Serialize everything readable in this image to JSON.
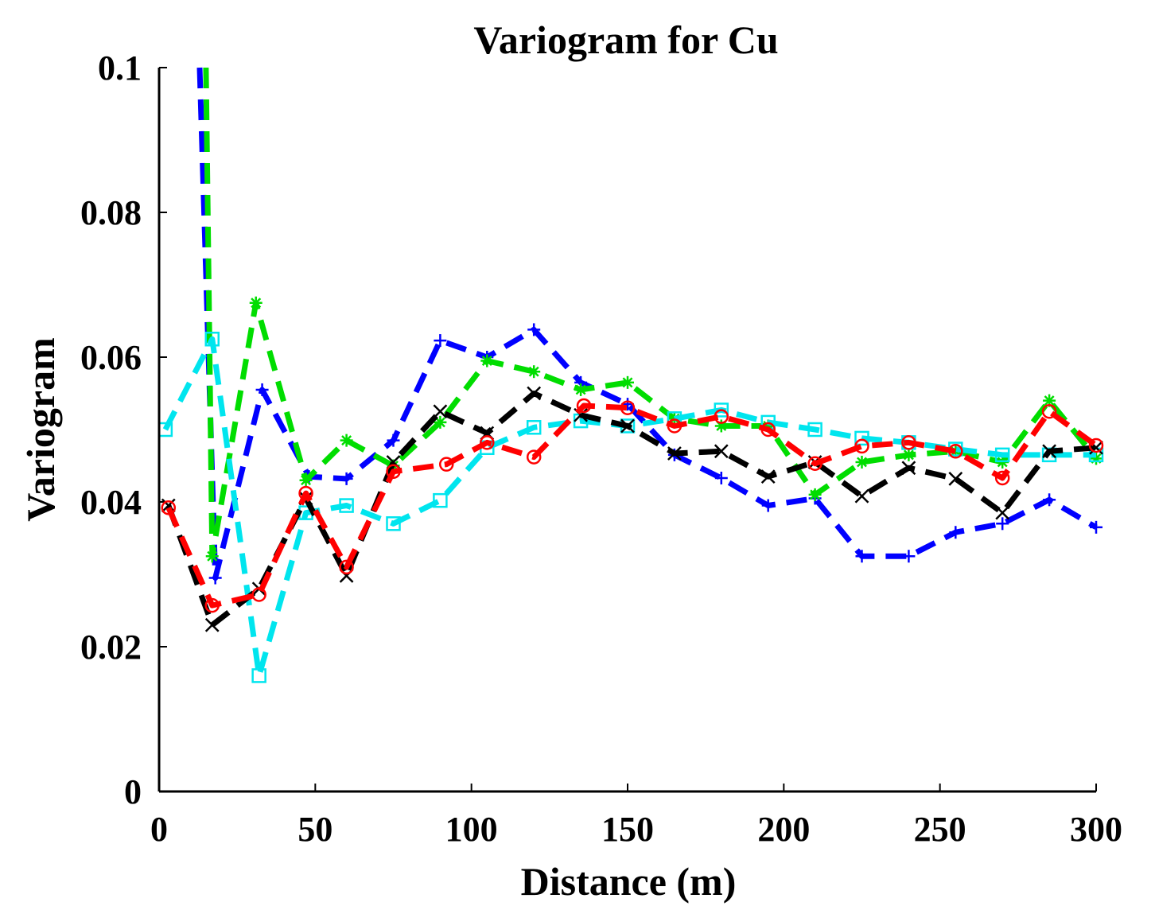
{
  "chart_data": {
    "type": "line",
    "title": "Variogram for Cu",
    "xlabel": "Distance (m)",
    "ylabel": "Variogram",
    "xlim": [
      0,
      300
    ],
    "ylim": [
      0,
      0.1
    ],
    "xticks": [
      0,
      50,
      100,
      150,
      200,
      250,
      300
    ],
    "xtick_labels": [
      "0",
      "50",
      "100",
      "150",
      "200",
      "250",
      "300"
    ],
    "yticks": [
      0,
      0.02,
      0.04,
      0.06,
      0.08,
      0.1
    ],
    "ytick_labels": [
      "0",
      "0.02",
      "0.04",
      "0.06",
      "0.08",
      "0.1"
    ],
    "grid": false,
    "series": [
      {
        "name": "blue",
        "color": "#0000ff",
        "marker": "plus",
        "x": [
          13,
          18,
          33,
          48,
          60,
          75,
          90,
          105,
          120,
          135,
          150,
          165,
          180,
          195,
          210,
          225,
          240,
          255,
          270,
          285,
          300
        ],
        "y": [
          0.1,
          0.0295,
          0.0555,
          0.0435,
          0.0432,
          0.0485,
          0.0623,
          0.06,
          0.0638,
          0.0565,
          0.0535,
          0.0465,
          0.0433,
          0.0395,
          0.0405,
          0.0325,
          0.0325,
          0.0358,
          0.037,
          0.0403,
          0.0365
        ]
      },
      {
        "name": "green",
        "color": "#00dd00",
        "marker": "star",
        "x": [
          15,
          17,
          31,
          47,
          60,
          75,
          90,
          105,
          120,
          135,
          150,
          165,
          180,
          195,
          210,
          225,
          240,
          255,
          270,
          285,
          300
        ],
        "y": [
          0.1,
          0.0325,
          0.0675,
          0.043,
          0.0485,
          0.045,
          0.051,
          0.0595,
          0.058,
          0.0555,
          0.0565,
          0.0515,
          0.0505,
          0.0505,
          0.041,
          0.0455,
          0.0465,
          0.047,
          0.0455,
          0.054,
          0.046
        ]
      },
      {
        "name": "cyan",
        "color": "#00e5ee",
        "marker": "square",
        "x": [
          2,
          17,
          32,
          47,
          60,
          75,
          90,
          105,
          120,
          135,
          150,
          165,
          180,
          195,
          210,
          225,
          240,
          255,
          270,
          285,
          300
        ],
        "y": [
          0.05,
          0.0625,
          0.016,
          0.0385,
          0.0395,
          0.037,
          0.0402,
          0.0475,
          0.0503,
          0.0512,
          0.0505,
          0.0515,
          0.0527,
          0.051,
          0.05,
          0.0488,
          0.0482,
          0.0473,
          0.0465,
          0.0465,
          0.0465
        ]
      },
      {
        "name": "black",
        "color": "#000000",
        "marker": "cross",
        "x": [
          3,
          17,
          32,
          47,
          60,
          75,
          90,
          105,
          120,
          135,
          150,
          165,
          180,
          195,
          210,
          225,
          240,
          255,
          270,
          285,
          300
        ],
        "y": [
          0.0395,
          0.023,
          0.028,
          0.0405,
          0.0298,
          0.0455,
          0.0525,
          0.0495,
          0.055,
          0.052,
          0.0505,
          0.0467,
          0.047,
          0.0435,
          0.0455,
          0.0408,
          0.0447,
          0.0432,
          0.0385,
          0.047,
          0.0475
        ]
      },
      {
        "name": "red",
        "color": "#ff0000",
        "marker": "circle",
        "x": [
          3,
          17,
          32,
          47,
          60,
          75,
          92,
          105,
          120,
          136,
          150,
          165,
          180,
          195,
          210,
          225,
          240,
          255,
          270,
          285,
          300
        ],
        "y": [
          0.0392,
          0.0257,
          0.0272,
          0.0412,
          0.031,
          0.0442,
          0.0452,
          0.0482,
          0.0462,
          0.0533,
          0.053,
          0.0505,
          0.0518,
          0.05,
          0.0453,
          0.0477,
          0.0482,
          0.047,
          0.0433,
          0.0525,
          0.0478
        ]
      }
    ]
  }
}
